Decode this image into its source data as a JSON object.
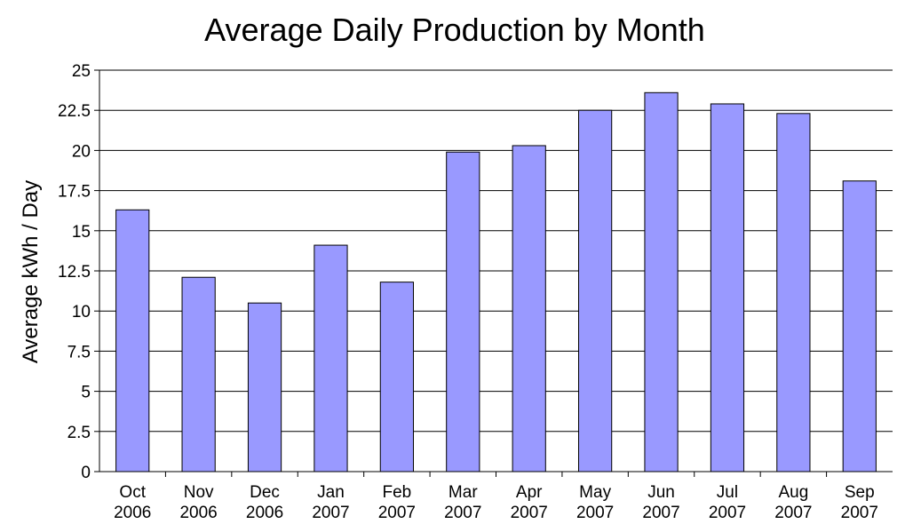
{
  "chart_data": {
    "type": "bar",
    "title": "Average Daily Production by Month",
    "xlabel": "",
    "ylabel": "Average kWh / Day",
    "ylim": [
      0,
      25
    ],
    "yticks": [
      "0",
      "2.5",
      "5",
      "7.5",
      "10",
      "12.5",
      "15",
      "17.5",
      "20",
      "22.5",
      "25"
    ],
    "categories": [
      [
        "Oct",
        "2006"
      ],
      [
        "Nov",
        "2006"
      ],
      [
        "Dec",
        "2006"
      ],
      [
        "Jan",
        "2007"
      ],
      [
        "Feb",
        "2007"
      ],
      [
        "Mar",
        "2007"
      ],
      [
        "Apr",
        "2007"
      ],
      [
        "May",
        "2007"
      ],
      [
        "Jun",
        "2007"
      ],
      [
        "Jul",
        "2007"
      ],
      [
        "Aug",
        "2007"
      ],
      [
        "Sep",
        "2007"
      ]
    ],
    "values": [
      16.3,
      12.1,
      10.5,
      14.1,
      11.8,
      19.9,
      20.3,
      22.5,
      23.6,
      22.9,
      22.3,
      18.1
    ],
    "grid": true,
    "legend": "none",
    "colors": {
      "bar": "#9999ff",
      "bar_edge": "#000000",
      "grid": "#000000"
    }
  }
}
